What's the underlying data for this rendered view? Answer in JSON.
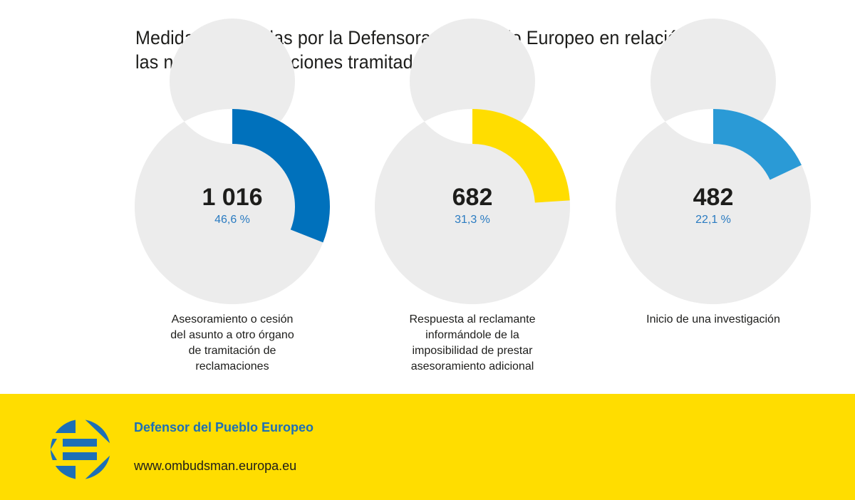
{
  "chart_data": {
    "type": "pie",
    "title": "Medidas adoptadas por la Defensora del Pueblo Europeo en relación con las nuevas reclamaciones tramitadas en 2018",
    "title_lines": [
      "Medidas adoptadas por la Defensora del Pueblo Europeo en relación con",
      "las nuevas reclamaciones tramitadas en 2018"
    ],
    "series": [
      {
        "name": "Asesoramiento o cesión del asunto a otro órgano de tramitación de reclamaciones",
        "value": 1016,
        "value_label": "1 016",
        "percent": 46.6,
        "percent_label": "46,6 %",
        "arc_fraction": 0.31,
        "label_lines": [
          "Asesoramiento o cesión",
          "del asunto a otro órgano",
          "de tramitación de",
          "reclamaciones"
        ],
        "color": "#0071bc"
      },
      {
        "name": "Respuesta al reclamante informándole de la imposibilidad de prestar asesoramiento adicional",
        "value": 682,
        "value_label": "682",
        "percent": 31.3,
        "percent_label": "31,3 %",
        "arc_fraction": 0.24,
        "label_lines": [
          "Respuesta al reclamante",
          "informándole de la",
          "imposibilidad de prestar",
          "asesoramiento adicional"
        ],
        "color": "#ffdd00"
      },
      {
        "name": "Inicio de una investigación",
        "value": 482,
        "value_label": "482",
        "percent": 22.1,
        "percent_label": "22,1 %",
        "arc_fraction": 0.18,
        "label_lines": [
          "Inicio de una investigación"
        ],
        "color": "#2a9ad6"
      }
    ],
    "track_color": "#ececec",
    "legend": "none"
  },
  "footer": {
    "brand": "Defensor del Pueblo Europeo",
    "url": "www.ombudsman.europa.eu",
    "background": "#ffdd00",
    "brand_color": "#1d6fb6"
  }
}
